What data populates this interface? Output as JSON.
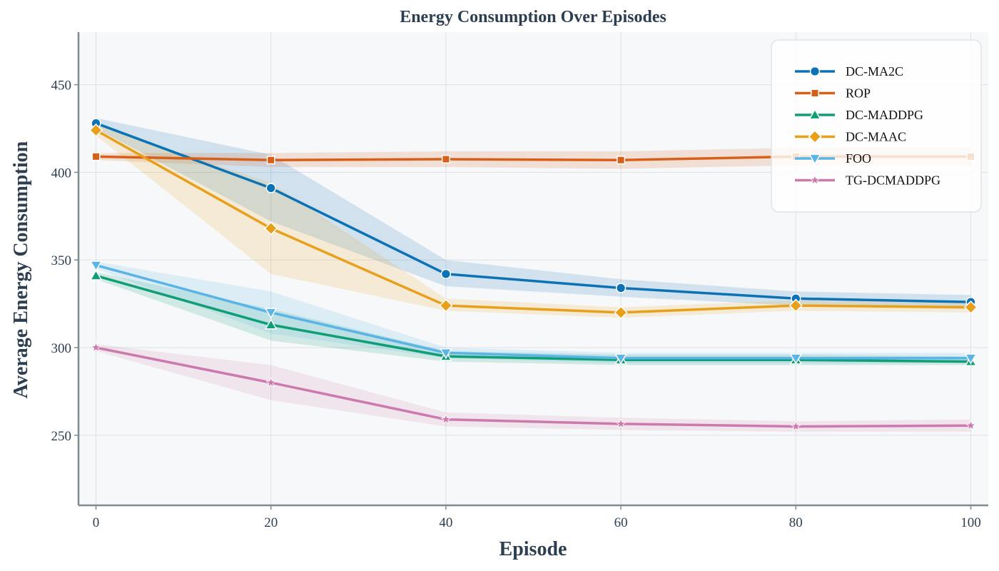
{
  "chart_data": {
    "type": "line",
    "title": "Energy Consumption Over Episodes",
    "xlabel": "Episode",
    "ylabel": "Average Energy Consumption",
    "x": [
      0,
      20,
      40,
      60,
      80,
      100
    ],
    "xlim": [
      -2,
      102
    ],
    "ylim": [
      210,
      480
    ],
    "xticks": [
      0,
      20,
      40,
      60,
      80,
      100
    ],
    "yticks": [
      250,
      300,
      350,
      400,
      450
    ],
    "grid": true,
    "legend_position": "top-right",
    "series": [
      {
        "name": "DC-MA2C",
        "color": "#0b72b5",
        "marker": "circle",
        "values": [
          428,
          391,
          342,
          334,
          328,
          326
        ],
        "lower": [
          425,
          372,
          335,
          329,
          324,
          322
        ],
        "upper": [
          431,
          410,
          350,
          339,
          332,
          330
        ]
      },
      {
        "name": "ROP",
        "color": "#d6601a",
        "marker": "square",
        "values": [
          409,
          407,
          407.5,
          407,
          409,
          409
        ],
        "lower": [
          407,
          403,
          403,
          402,
          404,
          404
        ],
        "upper": [
          411,
          411,
          412,
          412,
          414,
          414
        ]
      },
      {
        "name": "DC-MADDPG",
        "color": "#0f9e76",
        "marker": "triangle-up",
        "values": [
          341,
          313,
          295,
          293,
          293,
          292
        ],
        "lower": [
          339,
          304,
          292,
          290,
          290,
          290
        ],
        "upper": [
          343,
          322,
          298,
          296,
          296,
          295
        ]
      },
      {
        "name": "DC-MAAC",
        "color": "#e8a01a",
        "marker": "diamond",
        "values": [
          424,
          368,
          324,
          320,
          324,
          323
        ],
        "lower": [
          421,
          342,
          321,
          317,
          321,
          320
        ],
        "upper": [
          427,
          394,
          328,
          323,
          327,
          326
        ]
      },
      {
        "name": "FOO",
        "color": "#5ab4e5",
        "marker": "triangle-down",
        "values": [
          347,
          320,
          297,
          294,
          294,
          294
        ],
        "lower": [
          345,
          308,
          294,
          291,
          291,
          291
        ],
        "upper": [
          349,
          332,
          300,
          297,
          297,
          297
        ]
      },
      {
        "name": "TG-DCMADDPG",
        "color": "#cc7aad",
        "marker": "star",
        "values": [
          300,
          280,
          259,
          256.5,
          255,
          255.5
        ],
        "lower": [
          298,
          270,
          255,
          253,
          252,
          252
        ],
        "upper": [
          302,
          290,
          263,
          260,
          258,
          259
        ]
      }
    ]
  }
}
